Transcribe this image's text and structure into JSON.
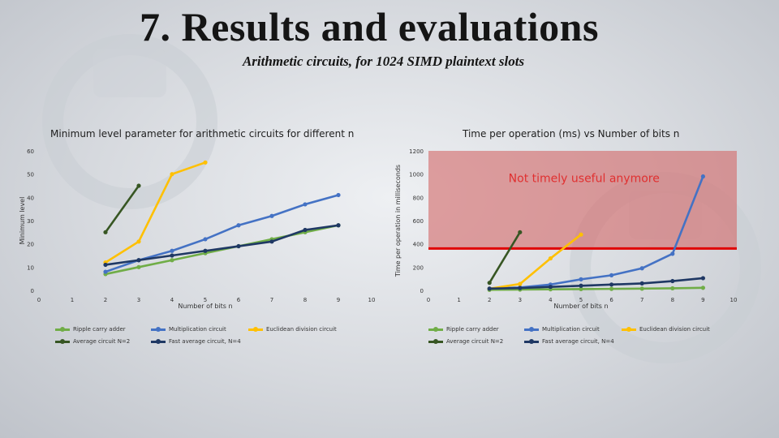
{
  "title": "7. Results and evaluations",
  "subtitle": "Arithmetic circuits, for 1024 SIMD plaintext slots",
  "chart_data": [
    {
      "type": "line",
      "title": "Minimum level parameter for arithmetic circuits for different n",
      "xlabel": "Number of bits n",
      "ylabel": "Minimum level",
      "xlim": [
        0,
        10
      ],
      "ylim": [
        0,
        60
      ],
      "xticks": [
        0,
        1,
        2,
        3,
        4,
        5,
        6,
        7,
        8,
        9,
        10
      ],
      "yticks": [
        0,
        10,
        20,
        30,
        40,
        50,
        60
      ],
      "legend_position": "bottom",
      "series": [
        {
          "name": "Ripple carry adder",
          "color": "#70ad47",
          "x": [
            2,
            3,
            4,
            5,
            6,
            7,
            8,
            9
          ],
          "y": [
            7,
            10,
            13,
            16,
            19,
            22,
            25,
            28
          ]
        },
        {
          "name": "Multiplication circuit",
          "color": "#4472c4",
          "x": [
            2,
            3,
            4,
            5,
            6,
            7,
            8,
            9
          ],
          "y": [
            8,
            13,
            17,
            22,
            28,
            32,
            37,
            41
          ]
        },
        {
          "name": "Euclidean division circuit",
          "color": "#ffc000",
          "x": [
            2,
            3,
            4,
            5
          ],
          "y": [
            12,
            21,
            50,
            55
          ]
        },
        {
          "name": "Average circuit N=2",
          "color": "#375623",
          "x": [
            2,
            3
          ],
          "y": [
            25,
            45
          ]
        },
        {
          "name": "Fast average circuit, N=4",
          "color": "#1f3864",
          "x": [
            2,
            3,
            4,
            5,
            6,
            7,
            8,
            9
          ],
          "y": [
            11,
            13,
            15,
            17,
            19,
            21,
            26,
            28
          ]
        }
      ]
    },
    {
      "type": "line",
      "title": "Time per operation (ms) vs Number of bits n",
      "xlabel": "Number of bits n",
      "ylabel": "Time per operation in milliseconds",
      "xlim": [
        0,
        10
      ],
      "ylim": [
        0,
        1200
      ],
      "xticks": [
        0,
        1,
        2,
        3,
        4,
        5,
        6,
        7,
        8,
        9,
        10
      ],
      "yticks": [
        0,
        200,
        400,
        600,
        800,
        1000,
        1200
      ],
      "legend_position": "bottom",
      "annotation": "Not timely useful anymore",
      "threshold": 360,
      "series": [
        {
          "name": "Ripple carry adder",
          "color": "#70ad47",
          "x": [
            2,
            3,
            4,
            5,
            6,
            7,
            8,
            9
          ],
          "y": [
            5,
            7,
            9,
            11,
            13,
            15,
            18,
            22
          ]
        },
        {
          "name": "Multiplication circuit",
          "color": "#4472c4",
          "x": [
            2,
            3,
            4,
            5,
            6,
            7,
            8,
            9
          ],
          "y": [
            15,
            25,
            50,
            95,
            130,
            190,
            315,
            980
          ]
        },
        {
          "name": "Euclidean division circuit",
          "color": "#ffc000",
          "x": [
            2,
            3,
            4,
            5
          ],
          "y": [
            15,
            55,
            275,
            480
          ]
        },
        {
          "name": "Average circuit N=2",
          "color": "#375623",
          "x": [
            2,
            3
          ],
          "y": [
            65,
            500
          ]
        },
        {
          "name": "Fast average circuit, N=4",
          "color": "#1f3864",
          "x": [
            2,
            3,
            4,
            5,
            6,
            7,
            8,
            9
          ],
          "y": [
            15,
            20,
            30,
            40,
            50,
            60,
            80,
            105
          ]
        }
      ]
    }
  ]
}
